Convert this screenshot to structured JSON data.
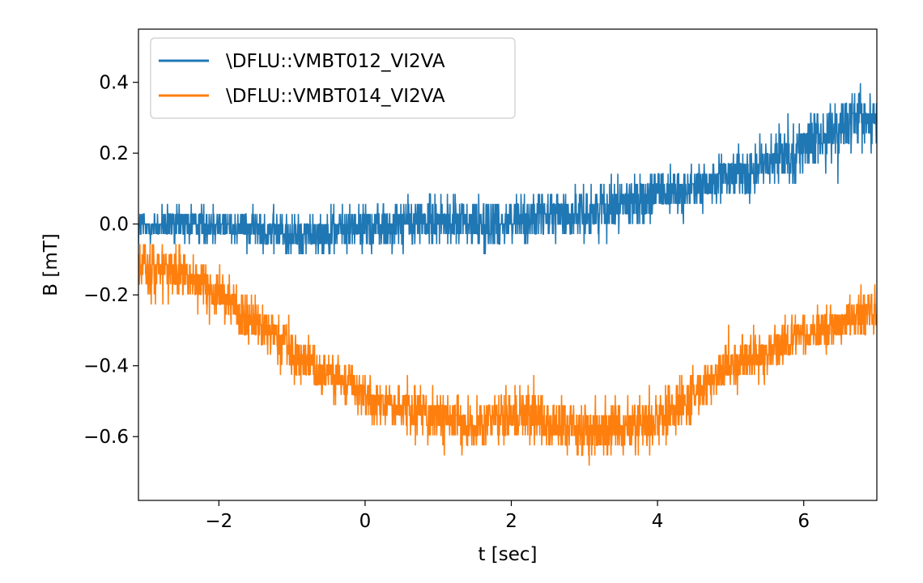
{
  "chart_data": {
    "type": "line",
    "xlabel": "t [sec]",
    "ylabel": "B [mT]",
    "xlim": [
      -3.1,
      7.0
    ],
    "ylim": [
      -0.78,
      0.55
    ],
    "xticks": [
      -2,
      0,
      2,
      4,
      6
    ],
    "xtick_labels": [
      "−2",
      "0",
      "2",
      "4",
      "6"
    ],
    "yticks": [
      -0.6,
      -0.4,
      -0.2,
      0.0,
      0.2,
      0.4
    ],
    "ytick_labels": [
      "−0.6",
      "−0.4",
      "−0.2",
      "0.0",
      "0.2",
      "0.4"
    ],
    "grid": false,
    "legend_position": "upper-left",
    "series": [
      {
        "name": "\\DFLU::VMBT012_VI2VA",
        "color": "#1f77b4",
        "x": [
          -3.1,
          -2.5,
          -2.0,
          -1.5,
          -1.0,
          -0.5,
          0.0,
          0.5,
          1.0,
          1.5,
          2.0,
          2.5,
          3.0,
          3.5,
          4.0,
          4.5,
          5.0,
          5.5,
          6.0,
          6.5,
          7.0
        ],
        "center": [
          -0.01,
          0.0,
          0.0,
          -0.01,
          -0.03,
          -0.02,
          -0.01,
          0.0,
          0.01,
          0.0,
          0.01,
          0.02,
          0.03,
          0.06,
          0.08,
          0.1,
          0.13,
          0.17,
          0.22,
          0.27,
          0.3
        ],
        "spread": [
          0.07,
          0.08,
          0.08,
          0.08,
          0.09,
          0.09,
          0.1,
          0.1,
          0.1,
          0.1,
          0.1,
          0.1,
          0.1,
          0.1,
          0.1,
          0.1,
          0.1,
          0.11,
          0.11,
          0.12,
          0.13
        ]
      },
      {
        "name": "\\DFLU::VMBT014_VI2VA",
        "color": "#ff7f0e",
        "x": [
          -3.1,
          -2.5,
          -2.0,
          -1.5,
          -1.0,
          -0.5,
          0.0,
          0.5,
          1.0,
          1.5,
          2.0,
          2.5,
          3.0,
          3.5,
          4.0,
          4.5,
          5.0,
          5.5,
          6.0,
          6.5,
          7.0
        ],
        "center": [
          -0.12,
          -0.14,
          -0.2,
          -0.28,
          -0.36,
          -0.42,
          -0.48,
          -0.52,
          -0.55,
          -0.57,
          -0.53,
          -0.56,
          -0.58,
          -0.58,
          -0.55,
          -0.48,
          -0.4,
          -0.36,
          -0.31,
          -0.28,
          -0.24
        ],
        "spread": [
          0.11,
          0.11,
          0.1,
          0.1,
          0.1,
          0.1,
          0.1,
          0.1,
          0.11,
          0.11,
          0.11,
          0.11,
          0.11,
          0.11,
          0.11,
          0.1,
          0.1,
          0.1,
          0.09,
          0.09,
          0.09
        ]
      }
    ]
  }
}
